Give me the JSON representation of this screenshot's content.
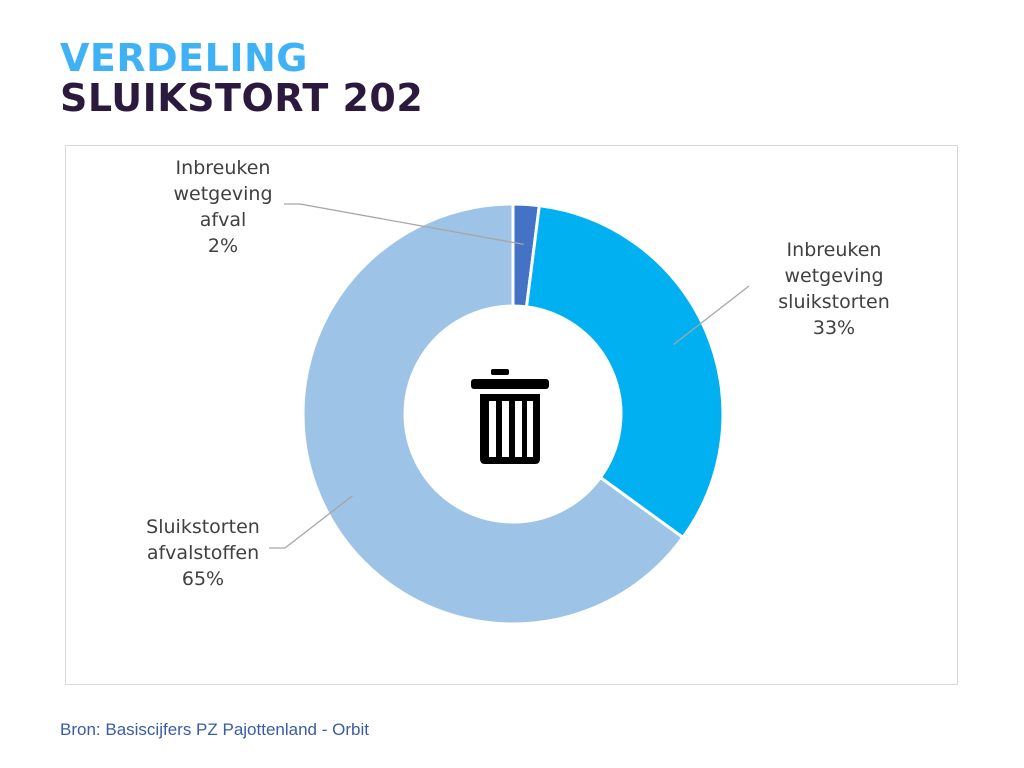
{
  "header": {
    "title_line1": "VERDELING",
    "title_line2": "SLUIKSTORT 202"
  },
  "chart_data": {
    "type": "pie",
    "variant": "donut",
    "categories": [
      "Inbreuken wetgeving afval",
      "Inbreuken wetgeving sluikstorten",
      "Sluikstorten afvalstoffen"
    ],
    "values": [
      2,
      33,
      65
    ],
    "labels": [
      {
        "lines": [
          "Inbreuken",
          "wetgeving",
          "afval",
          "2%"
        ]
      },
      {
        "lines": [
          "Inbreuken",
          "wetgeving",
          "sluikstorten",
          "33%"
        ]
      },
      {
        "lines": [
          "Sluikstorten",
          "afvalstoffen",
          "65%"
        ]
      }
    ],
    "colors": [
      "#4472c4",
      "#00b0f0",
      "#9dc3e6"
    ],
    "center_icon": "trash-can-icon",
    "legend": "none"
  },
  "footer": {
    "source": "Bron: Basiscijfers PZ Pajottenland - Orbit"
  },
  "colors": {
    "title_accent": "#3fb2f5",
    "title_dark": "#2b1a3d",
    "source_text": "#3a5ba8",
    "label_text": "#404040",
    "leader_line": "#a6a6a6"
  }
}
